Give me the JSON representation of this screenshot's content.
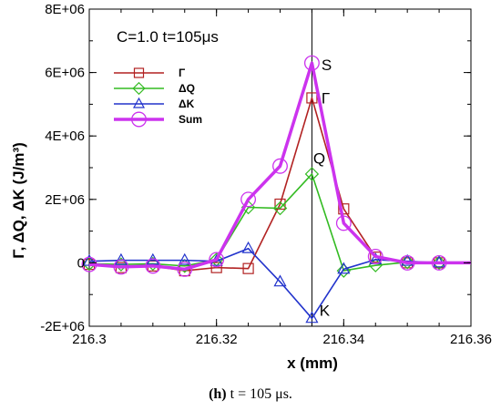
{
  "chart_data": {
    "type": "line",
    "xlabel": "x (mm)",
    "ylabel": "Γ, ΔQ, ΔK (J/m³)",
    "xlim": [
      216.3,
      216.36
    ],
    "ylim": [
      -2000000,
      8000000
    ],
    "x_ticks": [
      216.3,
      216.32,
      216.34,
      216.36
    ],
    "x_tick_labels": [
      "216.3",
      "216.32",
      "216.34",
      "216.36"
    ],
    "y_ticks": [
      -2000000,
      0,
      2000000,
      4000000,
      6000000,
      8000000
    ],
    "y_tick_labels": [
      "-2E+06",
      "0",
      "2E+06",
      "4E+06",
      "6E+06",
      "8E+06"
    ],
    "grid": false,
    "legend_position": "top-left",
    "title_annotation": "C=1.0  t=105μs",
    "vline_x": 216.335,
    "annotations": [
      {
        "text": "S",
        "x": 216.3365,
        "y": 6250000
      },
      {
        "text": "Γ",
        "x": 216.3365,
        "y": 5200000
      },
      {
        "text": "Q",
        "x": 216.3352,
        "y": 3300000
      },
      {
        "text": "K",
        "x": 216.3362,
        "y": -1500000
      }
    ],
    "series": [
      {
        "name": "Γ",
        "color": "#b22222",
        "marker": "square",
        "x": [
          216.3,
          216.305,
          216.31,
          216.315,
          216.32,
          216.325,
          216.33,
          216.335,
          216.34,
          216.345,
          216.35,
          216.355,
          216.36
        ],
        "values": [
          -50000,
          -150000,
          -100000,
          -250000,
          -150000,
          -180000,
          1850000,
          5200000,
          1700000,
          180000,
          0,
          0,
          0
        ]
      },
      {
        "name": "ΔQ",
        "color": "#33bb22",
        "marker": "diamond",
        "x": [
          216.3,
          216.305,
          216.31,
          216.315,
          216.32,
          216.325,
          216.33,
          216.335,
          216.34,
          216.345,
          216.35,
          216.355,
          216.36
        ],
        "values": [
          -30000,
          -50000,
          -30000,
          -100000,
          100000,
          1750000,
          1720000,
          2800000,
          -250000,
          -80000,
          20000,
          0,
          0
        ]
      },
      {
        "name": "ΔK",
        "color": "#2233cc",
        "marker": "triangle",
        "x": [
          216.3,
          216.305,
          216.31,
          216.315,
          216.32,
          216.325,
          216.33,
          216.335,
          216.34,
          216.345,
          216.35,
          216.355,
          216.36
        ],
        "values": [
          50000,
          80000,
          80000,
          80000,
          50000,
          450000,
          -600000,
          -1750000,
          -200000,
          100000,
          50000,
          0,
          0
        ]
      },
      {
        "name": "Sum",
        "color": "#cc33ee",
        "marker": "circle",
        "x": [
          216.3,
          216.305,
          216.31,
          216.315,
          216.32,
          216.325,
          216.33,
          216.335,
          216.34,
          216.345,
          216.35,
          216.355,
          216.36
        ],
        "values": [
          -50000,
          -130000,
          -100000,
          -200000,
          100000,
          2000000,
          3050000,
          6300000,
          1250000,
          200000,
          0,
          0,
          0
        ]
      }
    ]
  },
  "caption": {
    "label": "(h)",
    "text": " t = 105 μs."
  }
}
